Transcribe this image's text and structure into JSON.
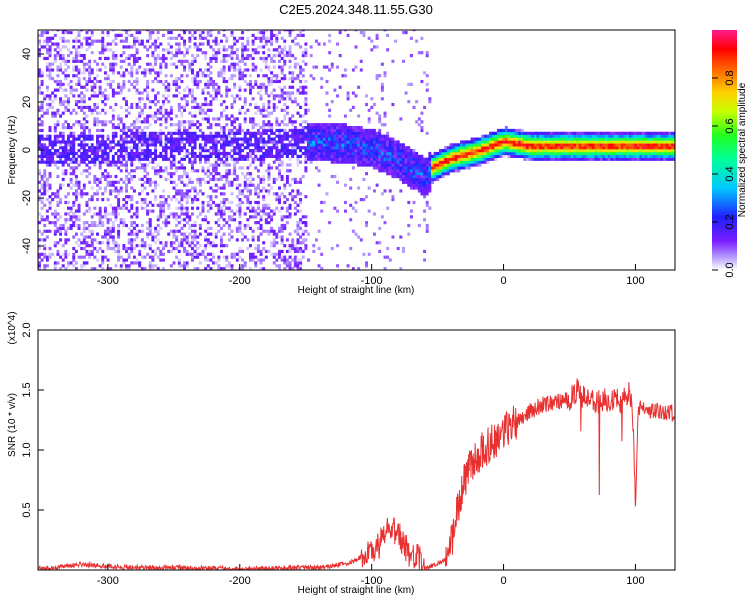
{
  "title": "C2E5.2024.348.11.55.G30",
  "chart_data": [
    {
      "type": "heatmap",
      "name": "spectrogram",
      "xlabel": "Height of straight line (km)",
      "ylabel": "Frequency (Hz)",
      "xlim": [
        -353,
        130
      ],
      "ylim": [
        -50,
        50
      ],
      "x_ticks": [
        -300,
        -200,
        -100,
        0,
        100
      ],
      "y_ticks": [
        -40,
        -20,
        0,
        20,
        40
      ],
      "grid": false,
      "colorbar": {
        "label": "Normalized spectral amplitude",
        "range": [
          0,
          1
        ],
        "ticks": [
          "0.0",
          "0.2",
          "0.4",
          "0.6",
          "0.8"
        ],
        "colormap": "rainbow (white-violet-blue-cyan-green-yellow-orange-red-magenta)"
      },
      "regions": [
        {
          "x_range": [
            -353,
            -150
          ],
          "freq_range": [
            -50,
            50
          ],
          "amplitude": [
            0.0,
            0.15
          ]
        },
        {
          "x_range": [
            -150,
            -55
          ],
          "freq_center": [
            3,
            -12
          ],
          "amplitude": [
            0.1,
            0.35
          ]
        },
        {
          "x_range": [
            -55,
            130
          ],
          "freq_center": [
            -7,
            2
          ],
          "bandwidth_hz": 6,
          "amplitude": [
            0.3,
            0.9
          ]
        }
      ],
      "center_freq_track": {
        "x": [
          -353,
          -200,
          -150,
          -120,
          -100,
          -80,
          -60,
          -55,
          -40,
          -20,
          0,
          20,
          60,
          100,
          130
        ],
        "y": [
          0,
          1,
          3,
          2,
          0,
          -5,
          -12,
          -8,
          -4,
          -1,
          3,
          1,
          1,
          1,
          1
        ]
      }
    },
    {
      "type": "line",
      "name": "snr",
      "xlabel": "Height of straight line (km)",
      "ylabel": "SNR (10 * v/v)",
      "y_multiplier": "(x10^4)",
      "xlim": [
        -353,
        130
      ],
      "ylim": [
        0,
        2.0
      ],
      "x_ticks": [
        -300,
        -200,
        -100,
        0,
        100
      ],
      "y_ticks": [
        "0.5",
        "1.0",
        "1.5",
        "2.0"
      ],
      "grid": false,
      "color": "#e83030",
      "series": [
        {
          "x": [
            -353,
            -340,
            -320,
            -300,
            -280,
            -250,
            -200,
            -180,
            -160,
            -140,
            -120,
            -105,
            -95,
            -90,
            -85,
            -80,
            -75,
            -70,
            -65,
            -60,
            -55,
            -50,
            -45,
            -40,
            -35,
            -30,
            -25,
            -20,
            -10,
            0,
            10,
            20,
            30,
            40,
            50,
            56,
            58,
            65,
            70,
            80,
            90,
            95,
            98,
            100,
            102,
            110,
            120,
            130
          ],
          "y": [
            0.01,
            0.02,
            0.05,
            0.03,
            0.02,
            0.02,
            0.01,
            0.01,
            0.02,
            0.02,
            0.05,
            0.12,
            0.2,
            0.3,
            0.35,
            0.3,
            0.2,
            0.12,
            0.1,
            0.02,
            0.03,
            0.05,
            0.08,
            0.2,
            0.5,
            0.75,
            0.85,
            0.95,
            1.05,
            1.15,
            1.25,
            1.32,
            1.38,
            1.4,
            1.42,
            1.5,
            1.45,
            1.42,
            1.4,
            1.43,
            1.4,
            1.5,
            1.3,
            0.5,
            1.35,
            1.33,
            1.32,
            1.31
          ]
        }
      ]
    }
  ]
}
